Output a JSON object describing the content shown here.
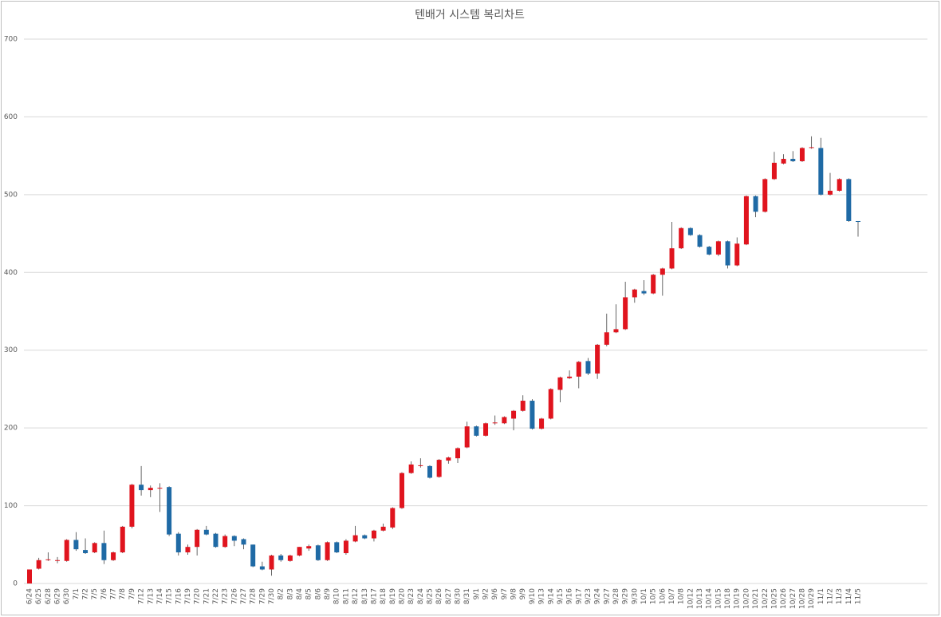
{
  "chart_data": {
    "type": "candlestick",
    "title": "텐배거 시스템 복리차트",
    "categories": [
      "6/24",
      "6/25",
      "6/28",
      "6/29",
      "6/30",
      "7/1",
      "7/2",
      "7/5",
      "7/6",
      "7/7",
      "7/8",
      "7/9",
      "7/12",
      "7/13",
      "7/14",
      "7/15",
      "7/16",
      "7/19",
      "7/20",
      "7/21",
      "7/22",
      "7/23",
      "7/26",
      "7/27",
      "7/28",
      "7/29",
      "7/30",
      "8/2",
      "8/3",
      "8/4",
      "8/5",
      "8/6",
      "8/9",
      "8/10",
      "8/11",
      "8/12",
      "8/13",
      "8/17",
      "8/18",
      "8/19",
      "8/20",
      "8/23",
      "8/24",
      "8/25",
      "8/26",
      "8/27",
      "8/30",
      "8/31",
      "9/1",
      "9/2",
      "9/6",
      "9/7",
      "9/8",
      "9/9",
      "9/10",
      "9/13",
      "9/14",
      "9/15",
      "9/16",
      "9/17",
      "9/23",
      "9/24",
      "9/27",
      "9/28",
      "9/29",
      "9/30",
      "10/1",
      "10/5",
      "10/6",
      "10/7",
      "10/8",
      "10/12",
      "10/13",
      "10/14",
      "10/15",
      "10/18",
      "10/19",
      "10/20",
      "10/21",
      "10/22",
      "10/25",
      "10/26",
      "10/27",
      "10/28",
      "10/29",
      "11/1",
      "11/2",
      "11/3",
      "11/4",
      "11/5"
    ],
    "open": [
      0,
      19,
      30,
      29,
      29,
      56,
      43,
      40,
      52,
      30,
      40,
      73,
      127,
      120,
      122,
      124,
      64,
      40,
      47,
      69,
      64,
      47,
      61,
      57,
      50,
      22,
      18,
      36,
      29,
      36,
      45,
      49,
      30,
      53,
      39,
      54,
      62,
      58,
      68,
      72,
      97,
      142,
      151,
      151,
      137,
      158,
      161,
      175,
      202,
      190,
      206,
      206,
      212,
      222,
      235,
      199,
      212,
      249,
      264,
      266,
      286,
      270,
      307,
      323,
      327,
      368,
      376,
      373,
      397,
      405,
      431,
      457,
      448,
      433,
      423,
      440,
      409,
      436,
      498,
      478,
      520,
      540,
      546,
      543,
      560,
      560,
      500,
      505,
      520,
      466
    ],
    "high": [
      18,
      33,
      40,
      34,
      57,
      66,
      58,
      53,
      68,
      41,
      74,
      128,
      151,
      126,
      129,
      125,
      66,
      50,
      70,
      74,
      65,
      63,
      62,
      58,
      50,
      28,
      37,
      38,
      37,
      47,
      50,
      50,
      54,
      54,
      57,
      74,
      63,
      69,
      77,
      98,
      143,
      157,
      161,
      152,
      160,
      163,
      175,
      208,
      203,
      207,
      216,
      215,
      223,
      242,
      237,
      213,
      251,
      266,
      274,
      286,
      290,
      308,
      347,
      359,
      388,
      379,
      390,
      398,
      406,
      465,
      458,
      458,
      449,
      434,
      441,
      441,
      445,
      499,
      499,
      521,
      555,
      552,
      556,
      561,
      575,
      573,
      528,
      521,
      521,
      466
    ],
    "low": [
      0,
      18,
      29,
      26,
      28,
      42,
      38,
      39,
      25,
      29,
      39,
      71,
      113,
      111,
      92,
      61,
      36,
      37,
      36,
      62,
      46,
      46,
      48,
      44,
      21,
      17,
      10,
      28,
      28,
      35,
      42,
      29,
      29,
      39,
      37,
      53,
      57,
      54,
      67,
      70,
      96,
      141,
      149,
      135,
      136,
      154,
      155,
      174,
      189,
      189,
      204,
      205,
      197,
      221,
      198,
      198,
      211,
      233,
      263,
      251,
      268,
      263,
      305,
      322,
      326,
      361,
      371,
      372,
      370,
      404,
      430,
      447,
      432,
      422,
      421,
      405,
      408,
      435,
      471,
      477,
      519,
      539,
      542,
      542,
      559,
      499,
      499,
      504,
      465,
      446
    ],
    "close": [
      18,
      30,
      31,
      30,
      56,
      44,
      39,
      52,
      30,
      40,
      73,
      127,
      120,
      123,
      123,
      63,
      40,
      47,
      69,
      63,
      47,
      61,
      55,
      50,
      22,
      18,
      36,
      30,
      36,
      47,
      48,
      30,
      53,
      40,
      55,
      62,
      58,
      68,
      73,
      97,
      142,
      153,
      152,
      136,
      159,
      162,
      174,
      202,
      190,
      206,
      207,
      214,
      222,
      235,
      199,
      212,
      250,
      265,
      266,
      285,
      270,
      307,
      323,
      327,
      368,
      378,
      373,
      397,
      405,
      431,
      457,
      448,
      433,
      423,
      440,
      409,
      437,
      498,
      478,
      520,
      541,
      546,
      543,
      560,
      561,
      500,
      505,
      520,
      466,
      465
    ],
    "up_color": "#e0141e",
    "down_color": "#1f6aa5",
    "ylim": [
      0,
      700
    ],
    "yticks": [
      0,
      100,
      200,
      300,
      400,
      500,
      600,
      700
    ],
    "grid": true
  }
}
